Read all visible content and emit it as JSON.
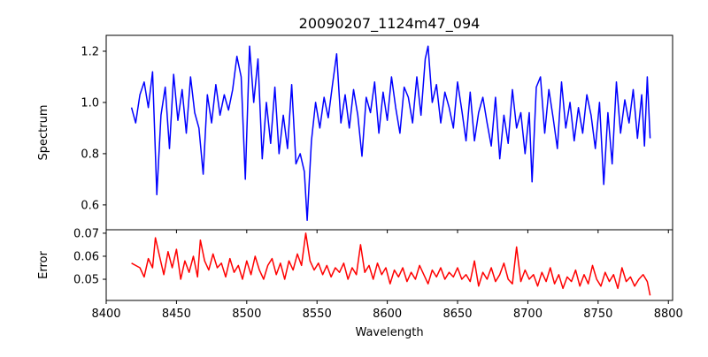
{
  "chart_data": [
    {
      "type": "line",
      "title": "20090207_1124m47_094",
      "xlabel": "",
      "ylabel": "Spectrum",
      "xlim": [
        8400,
        8803
      ],
      "ylim": [
        0.503,
        1.262
      ],
      "xticks": [
        8400,
        8450,
        8500,
        8550,
        8600,
        8650,
        8700,
        8750,
        8800
      ],
      "yticks": [
        "0.6",
        "0.8",
        "1.0",
        "1.2"
      ],
      "color": "#0000ff",
      "points": [
        [
          8418,
          0.98
        ],
        [
          8421,
          0.92
        ],
        [
          8424,
          1.03
        ],
        [
          8427,
          1.08
        ],
        [
          8430,
          0.98
        ],
        [
          8433,
          1.12
        ],
        [
          8436,
          0.64
        ],
        [
          8439,
          0.95
        ],
        [
          8442,
          1.06
        ],
        [
          8445,
          0.82
        ],
        [
          8448,
          1.11
        ],
        [
          8451,
          0.93
        ],
        [
          8454,
          1.05
        ],
        [
          8457,
          0.88
        ],
        [
          8460,
          1.1
        ],
        [
          8463,
          0.96
        ],
        [
          8466,
          0.9
        ],
        [
          8469,
          0.72
        ],
        [
          8472,
          1.03
        ],
        [
          8475,
          0.92
        ],
        [
          8478,
          1.07
        ],
        [
          8481,
          0.95
        ],
        [
          8484,
          1.03
        ],
        [
          8487,
          0.97
        ],
        [
          8490,
          1.05
        ],
        [
          8493,
          1.18
        ],
        [
          8496,
          1.1
        ],
        [
          8499,
          0.7
        ],
        [
          8502,
          1.22
        ],
        [
          8505,
          1.0
        ],
        [
          8508,
          1.17
        ],
        [
          8511,
          0.78
        ],
        [
          8514,
          1.0
        ],
        [
          8517,
          0.84
        ],
        [
          8520,
          1.06
        ],
        [
          8523,
          0.8
        ],
        [
          8526,
          0.95
        ],
        [
          8529,
          0.82
        ],
        [
          8532,
          1.07
        ],
        [
          8535,
          0.76
        ],
        [
          8538,
          0.8
        ],
        [
          8541,
          0.73
        ],
        [
          8543,
          0.54
        ],
        [
          8546,
          0.85
        ],
        [
          8549,
          1.0
        ],
        [
          8552,
          0.9
        ],
        [
          8555,
          1.02
        ],
        [
          8558,
          0.94
        ],
        [
          8561,
          1.07
        ],
        [
          8564,
          1.19
        ],
        [
          8567,
          0.92
        ],
        [
          8570,
          1.03
        ],
        [
          8573,
          0.9
        ],
        [
          8576,
          1.05
        ],
        [
          8579,
          0.95
        ],
        [
          8582,
          0.79
        ],
        [
          8585,
          1.02
        ],
        [
          8588,
          0.96
        ],
        [
          8591,
          1.08
        ],
        [
          8594,
          0.88
        ],
        [
          8597,
          1.04
        ],
        [
          8600,
          0.93
        ],
        [
          8603,
          1.1
        ],
        [
          8606,
          0.98
        ],
        [
          8609,
          0.88
        ],
        [
          8612,
          1.06
        ],
        [
          8615,
          1.02
        ],
        [
          8618,
          0.92
        ],
        [
          8621,
          1.1
        ],
        [
          8624,
          0.95
        ],
        [
          8627,
          1.17
        ],
        [
          8629,
          1.22
        ],
        [
          8632,
          1.0
        ],
        [
          8635,
          1.07
        ],
        [
          8638,
          0.92
        ],
        [
          8641,
          1.04
        ],
        [
          8644,
          0.98
        ],
        [
          8647,
          0.9
        ],
        [
          8650,
          1.08
        ],
        [
          8653,
          0.97
        ],
        [
          8656,
          0.85
        ],
        [
          8659,
          1.04
        ],
        [
          8662,
          0.85
        ],
        [
          8665,
          0.96
        ],
        [
          8668,
          1.02
        ],
        [
          8671,
          0.92
        ],
        [
          8674,
          0.83
        ],
        [
          8677,
          1.02
        ],
        [
          8680,
          0.78
        ],
        [
          8683,
          0.95
        ],
        [
          8686,
          0.84
        ],
        [
          8689,
          1.05
        ],
        [
          8692,
          0.9
        ],
        [
          8695,
          0.96
        ],
        [
          8698,
          0.8
        ],
        [
          8701,
          0.96
        ],
        [
          8703,
          0.69
        ],
        [
          8706,
          1.06
        ],
        [
          8709,
          1.1
        ],
        [
          8712,
          0.88
        ],
        [
          8715,
          1.05
        ],
        [
          8718,
          0.94
        ],
        [
          8721,
          0.82
        ],
        [
          8724,
          1.08
        ],
        [
          8727,
          0.9
        ],
        [
          8730,
          1.0
        ],
        [
          8733,
          0.85
        ],
        [
          8736,
          0.98
        ],
        [
          8739,
          0.88
        ],
        [
          8742,
          1.03
        ],
        [
          8745,
          0.95
        ],
        [
          8748,
          0.82
        ],
        [
          8751,
          1.0
        ],
        [
          8754,
          0.68
        ],
        [
          8757,
          0.96
        ],
        [
          8760,
          0.76
        ],
        [
          8763,
          1.08
        ],
        [
          8766,
          0.88
        ],
        [
          8769,
          1.01
        ],
        [
          8772,
          0.92
        ],
        [
          8775,
          1.05
        ],
        [
          8778,
          0.86
        ],
        [
          8781,
          1.03
        ],
        [
          8783,
          0.83
        ],
        [
          8785,
          1.1
        ],
        [
          8787,
          0.86
        ]
      ]
    },
    {
      "type": "line",
      "xlabel": "Wavelength",
      "ylabel": "Error",
      "xlim": [
        8400,
        8803
      ],
      "ylim": [
        0.0408,
        0.0715
      ],
      "xticks": [
        8400,
        8450,
        8500,
        8550,
        8600,
        8650,
        8700,
        8750,
        8800
      ],
      "yticks": [
        "0.05",
        "0.06",
        "0.07"
      ],
      "color": "#ff0000",
      "points": [
        [
          8418,
          0.057
        ],
        [
          8421,
          0.056
        ],
        [
          8424,
          0.055
        ],
        [
          8427,
          0.051
        ],
        [
          8430,
          0.059
        ],
        [
          8433,
          0.055
        ],
        [
          8435,
          0.068
        ],
        [
          8438,
          0.06
        ],
        [
          8441,
          0.052
        ],
        [
          8444,
          0.062
        ],
        [
          8447,
          0.055
        ],
        [
          8450,
          0.063
        ],
        [
          8453,
          0.05
        ],
        [
          8456,
          0.058
        ],
        [
          8459,
          0.053
        ],
        [
          8462,
          0.06
        ],
        [
          8465,
          0.051
        ],
        [
          8467,
          0.067
        ],
        [
          8470,
          0.058
        ],
        [
          8473,
          0.054
        ],
        [
          8476,
          0.061
        ],
        [
          8479,
          0.055
        ],
        [
          8482,
          0.057
        ],
        [
          8485,
          0.051
        ],
        [
          8488,
          0.059
        ],
        [
          8491,
          0.053
        ],
        [
          8494,
          0.056
        ],
        [
          8497,
          0.05
        ],
        [
          8500,
          0.058
        ],
        [
          8503,
          0.052
        ],
        [
          8506,
          0.06
        ],
        [
          8509,
          0.054
        ],
        [
          8512,
          0.05
        ],
        [
          8515,
          0.056
        ],
        [
          8518,
          0.059
        ],
        [
          8521,
          0.052
        ],
        [
          8524,
          0.057
        ],
        [
          8527,
          0.05
        ],
        [
          8530,
          0.058
        ],
        [
          8533,
          0.054
        ],
        [
          8536,
          0.061
        ],
        [
          8539,
          0.056
        ],
        [
          8542,
          0.07
        ],
        [
          8545,
          0.058
        ],
        [
          8548,
          0.054
        ],
        [
          8551,
          0.057
        ],
        [
          8554,
          0.052
        ],
        [
          8557,
          0.056
        ],
        [
          8560,
          0.051
        ],
        [
          8563,
          0.055
        ],
        [
          8566,
          0.053
        ],
        [
          8569,
          0.057
        ],
        [
          8572,
          0.05
        ],
        [
          8575,
          0.055
        ],
        [
          8578,
          0.052
        ],
        [
          8581,
          0.065
        ],
        [
          8584,
          0.053
        ],
        [
          8587,
          0.056
        ],
        [
          8590,
          0.05
        ],
        [
          8593,
          0.057
        ],
        [
          8596,
          0.052
        ],
        [
          8599,
          0.055
        ],
        [
          8602,
          0.048
        ],
        [
          8605,
          0.054
        ],
        [
          8608,
          0.051
        ],
        [
          8611,
          0.055
        ],
        [
          8614,
          0.049
        ],
        [
          8617,
          0.053
        ],
        [
          8620,
          0.05
        ],
        [
          8623,
          0.056
        ],
        [
          8626,
          0.052
        ],
        [
          8629,
          0.048
        ],
        [
          8632,
          0.054
        ],
        [
          8635,
          0.051
        ],
        [
          8638,
          0.055
        ],
        [
          8641,
          0.05
        ],
        [
          8644,
          0.053
        ],
        [
          8647,
          0.051
        ],
        [
          8650,
          0.055
        ],
        [
          8653,
          0.05
        ],
        [
          8656,
          0.052
        ],
        [
          8659,
          0.049
        ],
        [
          8662,
          0.058
        ],
        [
          8665,
          0.047
        ],
        [
          8668,
          0.053
        ],
        [
          8671,
          0.05
        ],
        [
          8674,
          0.055
        ],
        [
          8677,
          0.049
        ],
        [
          8680,
          0.052
        ],
        [
          8683,
          0.057
        ],
        [
          8686,
          0.05
        ],
        [
          8689,
          0.048
        ],
        [
          8692,
          0.064
        ],
        [
          8695,
          0.049
        ],
        [
          8698,
          0.054
        ],
        [
          8701,
          0.05
        ],
        [
          8704,
          0.052
        ],
        [
          8707,
          0.047
        ],
        [
          8710,
          0.053
        ],
        [
          8713,
          0.049
        ],
        [
          8716,
          0.055
        ],
        [
          8719,
          0.048
        ],
        [
          8722,
          0.052
        ],
        [
          8725,
          0.046
        ],
        [
          8728,
          0.051
        ],
        [
          8731,
          0.049
        ],
        [
          8734,
          0.054
        ],
        [
          8737,
          0.047
        ],
        [
          8740,
          0.052
        ],
        [
          8743,
          0.048
        ],
        [
          8746,
          0.056
        ],
        [
          8749,
          0.05
        ],
        [
          8752,
          0.047
        ],
        [
          8755,
          0.053
        ],
        [
          8758,
          0.049
        ],
        [
          8761,
          0.052
        ],
        [
          8764,
          0.046
        ],
        [
          8767,
          0.055
        ],
        [
          8770,
          0.049
        ],
        [
          8773,
          0.051
        ],
        [
          8776,
          0.047
        ],
        [
          8779,
          0.05
        ],
        [
          8782,
          0.052
        ],
        [
          8785,
          0.049
        ],
        [
          8787,
          0.043
        ]
      ]
    }
  ]
}
